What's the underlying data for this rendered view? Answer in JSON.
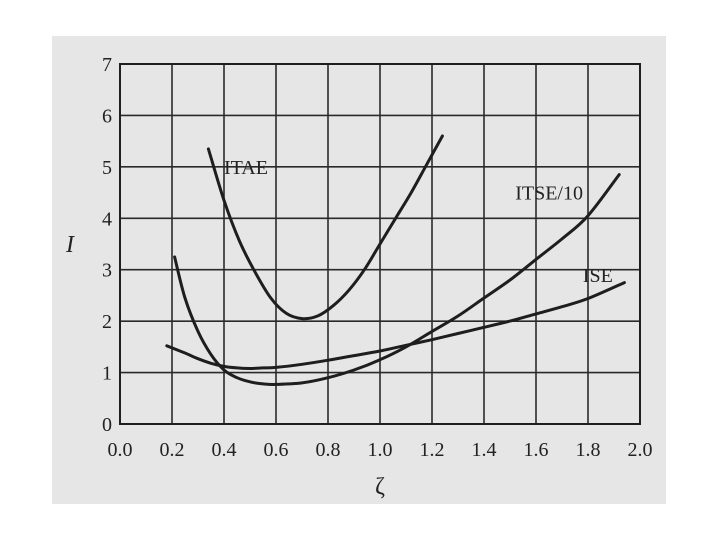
{
  "chart_data": {
    "type": "line",
    "xlabel": "ζ",
    "ylabel": "I",
    "xlim": [
      0.0,
      2.0
    ],
    "ylim": [
      0,
      7
    ],
    "grid": true,
    "legend": "none",
    "x_ticks": [
      "0.0",
      "0.2",
      "0.4",
      "0.6",
      "0.8",
      "1.0",
      "1.2",
      "1.4",
      "1.6",
      "1.8",
      "2.0"
    ],
    "y_ticks": [
      "0",
      "1",
      "2",
      "3",
      "4",
      "5",
      "6",
      "7"
    ],
    "series": [
      {
        "name": "ITAE",
        "x": [
          0.34,
          0.4,
          0.46,
          0.52,
          0.58,
          0.64,
          0.7,
          0.76,
          0.82,
          0.88,
          0.94,
          1.0,
          1.06,
          1.12,
          1.18,
          1.24
        ],
        "y": [
          5.35,
          4.35,
          3.55,
          2.95,
          2.45,
          2.15,
          2.05,
          2.1,
          2.3,
          2.6,
          3.0,
          3.5,
          4.0,
          4.5,
          5.05,
          5.6
        ]
      },
      {
        "name": "ITSE/10",
        "x": [
          0.21,
          0.25,
          0.3,
          0.35,
          0.4,
          0.45,
          0.5,
          0.55,
          0.6,
          0.7,
          0.8,
          0.9,
          1.0,
          1.1,
          1.2,
          1.3,
          1.4,
          1.5,
          1.6,
          1.7,
          1.8,
          1.92
        ],
        "y": [
          3.25,
          2.45,
          1.8,
          1.35,
          1.05,
          0.9,
          0.82,
          0.78,
          0.77,
          0.8,
          0.9,
          1.05,
          1.25,
          1.5,
          1.8,
          2.1,
          2.45,
          2.8,
          3.2,
          3.6,
          4.05,
          4.85
        ]
      },
      {
        "name": "ISE",
        "x": [
          0.18,
          0.25,
          0.3,
          0.35,
          0.4,
          0.45,
          0.5,
          0.55,
          0.6,
          0.7,
          0.8,
          0.9,
          1.0,
          1.1,
          1.2,
          1.3,
          1.4,
          1.5,
          1.6,
          1.7,
          1.8,
          1.94
        ],
        "y": [
          1.52,
          1.38,
          1.27,
          1.18,
          1.12,
          1.09,
          1.08,
          1.09,
          1.1,
          1.16,
          1.24,
          1.33,
          1.42,
          1.53,
          1.64,
          1.76,
          1.88,
          2.0,
          2.14,
          2.28,
          2.44,
          2.75
        ]
      }
    ],
    "labels": [
      {
        "text": "ITAE",
        "x": 0.4,
        "y": 5.0
      },
      {
        "text": "ITSE/10",
        "x": 1.52,
        "y": 4.5
      },
      {
        "text": "ISE",
        "x": 1.78,
        "y": 2.9
      }
    ]
  }
}
